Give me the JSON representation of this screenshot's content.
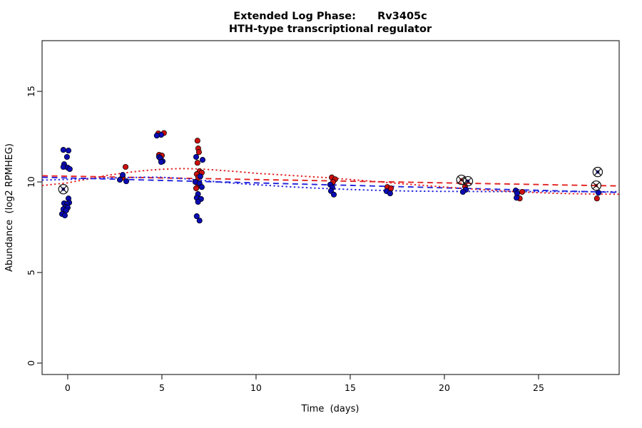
{
  "title": {
    "line1": "Extended Log Phase:      Rv3405c",
    "line2": "HTH-type transcriptional regulator"
  },
  "chart_data": {
    "type": "scatter",
    "title": "Extended Log Phase: Rv3405c — HTH-type transcriptional regulator",
    "xlabel": "Time  (days)",
    "ylabel": "Abundance  (log2 RPMHEG)",
    "grid": false,
    "legend": "none",
    "axes": {
      "x": {
        "ticks": [
          0,
          5,
          10,
          15,
          20,
          25
        ],
        "range": [
          -1.36,
          29.28
        ]
      },
      "y": {
        "ticks": [
          0,
          5,
          10,
          15
        ],
        "range": [
          -0.63,
          17.8
        ]
      }
    },
    "colors": {
      "red": "#cc1010",
      "blue": "#0b0bb4",
      "red_line": "#e32222",
      "blue_line": "#2323dd",
      "frame": "#2b2b2b",
      "flag": "#111111"
    },
    "series": [
      {
        "name": "replicate-red",
        "color_key": "red",
        "points": [
          [
            3.07,
            10.83
          ],
          [
            2.92,
            10.24
          ],
          [
            4.81,
            12.68
          ],
          [
            5.11,
            12.7
          ],
          [
            4.85,
            11.5
          ],
          [
            5.0,
            11.46
          ],
          [
            6.89,
            12.28
          ],
          [
            6.93,
            11.85
          ],
          [
            6.97,
            11.65
          ],
          [
            6.89,
            11.06
          ],
          [
            7.0,
            10.59
          ],
          [
            7.12,
            10.51
          ],
          [
            6.85,
            10.43
          ],
          [
            6.93,
            10.24
          ],
          [
            6.93,
            9.8
          ],
          [
            6.82,
            9.65
          ],
          [
            14.02,
            10.25
          ],
          [
            14.2,
            10.15
          ],
          [
            14.09,
            10.0
          ],
          [
            16.97,
            9.72
          ],
          [
            17.16,
            9.65
          ],
          [
            21.1,
            9.76
          ],
          [
            24.13,
            9.45
          ],
          [
            24.0,
            9.09
          ],
          [
            28.1,
            9.09
          ]
        ]
      },
      {
        "name": "replicate-blue",
        "color_key": "blue",
        "points": [
          [
            -0.23,
            11.77
          ],
          [
            0.04,
            11.73
          ],
          [
            -0.04,
            11.38
          ],
          [
            -0.19,
            10.98
          ],
          [
            -0.23,
            10.83
          ],
          [
            0.0,
            10.79
          ],
          [
            0.11,
            10.71
          ],
          [
            0.04,
            9.09
          ],
          [
            0.08,
            8.86
          ],
          [
            -0.19,
            8.82
          ],
          [
            -0.04,
            8.78
          ],
          [
            -0.11,
            8.62
          ],
          [
            0.0,
            8.58
          ],
          [
            -0.23,
            8.5
          ],
          [
            -0.08,
            8.43
          ],
          [
            -0.3,
            8.23
          ],
          [
            -0.15,
            8.15
          ],
          [
            2.92,
            10.39
          ],
          [
            2.77,
            10.12
          ],
          [
            3.11,
            10.04
          ],
          [
            4.96,
            12.6
          ],
          [
            4.73,
            12.56
          ],
          [
            4.85,
            11.38
          ],
          [
            4.92,
            11.3
          ],
          [
            5.04,
            11.14
          ],
          [
            4.96,
            11.1
          ],
          [
            6.82,
            11.38
          ],
          [
            7.16,
            11.22
          ],
          [
            7.04,
            10.31
          ],
          [
            6.78,
            10.0
          ],
          [
            7.0,
            9.92
          ],
          [
            7.12,
            9.72
          ],
          [
            6.92,
            9.33
          ],
          [
            6.85,
            9.13
          ],
          [
            7.08,
            9.06
          ],
          [
            6.92,
            8.9
          ],
          [
            6.85,
            8.11
          ],
          [
            7.0,
            7.87
          ],
          [
            13.94,
            9.85
          ],
          [
            14.05,
            9.7
          ],
          [
            13.98,
            9.5
          ],
          [
            14.13,
            9.3
          ],
          [
            16.93,
            9.49
          ],
          [
            17.12,
            9.37
          ],
          [
            21.14,
            9.57
          ],
          [
            20.98,
            9.45
          ],
          [
            23.79,
            9.53
          ],
          [
            23.86,
            9.37
          ],
          [
            23.83,
            9.13
          ],
          [
            28.18,
            9.41
          ]
        ]
      }
    ],
    "flagged_points": [
      {
        "x": -0.23,
        "y": 9.6,
        "series": "blue"
      },
      {
        "x": 20.9,
        "y": 10.12,
        "series": "red"
      },
      {
        "x": 21.25,
        "y": 10.04,
        "series": "blue"
      },
      {
        "x": 28.14,
        "y": 10.55,
        "series": "blue"
      },
      {
        "x": 28.06,
        "y": 9.8,
        "series": "red"
      }
    ],
    "trend_lines": [
      {
        "name": "red-linear-fit",
        "color_key": "red_line",
        "style": "dashed",
        "points": [
          [
            -1.36,
            10.34
          ],
          [
            29.28,
            9.78
          ]
        ]
      },
      {
        "name": "blue-linear-fit",
        "color_key": "blue_line",
        "style": "dashed",
        "points": [
          [
            -1.36,
            10.26
          ],
          [
            29.28,
            9.42
          ]
        ]
      },
      {
        "name": "red-lowess",
        "color_key": "red_line",
        "style": "dotted",
        "points": [
          [
            -1.36,
            9.8
          ],
          [
            0,
            9.95
          ],
          [
            1,
            10.15
          ],
          [
            2,
            10.35
          ],
          [
            3,
            10.5
          ],
          [
            4,
            10.62
          ],
          [
            5,
            10.7
          ],
          [
            6,
            10.74
          ],
          [
            7,
            10.72
          ],
          [
            8,
            10.65
          ],
          [
            9,
            10.57
          ],
          [
            10,
            10.48
          ],
          [
            12,
            10.35
          ],
          [
            14,
            10.22
          ],
          [
            16,
            10.05
          ],
          [
            18,
            9.88
          ],
          [
            20,
            9.72
          ],
          [
            22,
            9.57
          ],
          [
            24,
            9.45
          ],
          [
            26,
            9.37
          ],
          [
            28,
            9.33
          ],
          [
            29.28,
            9.32
          ]
        ]
      },
      {
        "name": "blue-lowess",
        "color_key": "blue_line",
        "style": "dotted",
        "points": [
          [
            -1.36,
            10.1
          ],
          [
            0,
            10.14
          ],
          [
            2,
            10.22
          ],
          [
            4,
            10.26
          ],
          [
            5,
            10.26
          ],
          [
            6,
            10.2
          ],
          [
            7,
            10.1
          ],
          [
            8,
            10.0
          ],
          [
            9,
            9.92
          ],
          [
            10,
            9.85
          ],
          [
            12,
            9.72
          ],
          [
            14,
            9.62
          ],
          [
            16,
            9.55
          ],
          [
            18,
            9.5
          ],
          [
            20,
            9.48
          ],
          [
            22,
            9.47
          ],
          [
            24,
            9.47
          ],
          [
            26,
            9.47
          ],
          [
            28,
            9.46
          ],
          [
            29.28,
            9.46
          ]
        ]
      }
    ]
  }
}
